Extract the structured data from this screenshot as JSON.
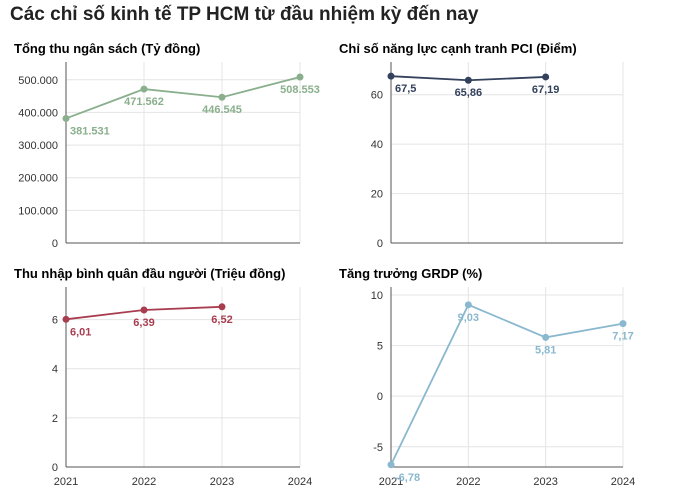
{
  "title": "Các chỉ số kinh tế TP HCM từ đầu nhiệm kỳ đến nay",
  "chart_data": [
    {
      "id": "budget",
      "type": "line",
      "title": "Tổng thu ngân sách (Tỷ đồng)",
      "color": "#8aaf8d",
      "x": [
        "2021",
        "2022",
        "2023",
        "2024"
      ],
      "values": [
        381531,
        471562,
        446545,
        508553
      ],
      "labels": [
        "381.531",
        "471.562",
        "446.545",
        "508.553"
      ],
      "yticks": [
        0,
        100000,
        200000,
        300000,
        400000,
        500000
      ],
      "ytick_labels": [
        "0",
        "100.000",
        "200.000",
        "300.000",
        "400.000",
        "500.000"
      ],
      "ylim": [
        0,
        530000
      ],
      "show_x_labels": false,
      "grid": true
    },
    {
      "id": "pci",
      "type": "line",
      "title": "Chỉ số năng lực cạnh tranh PCI (Điểm)",
      "color": "#33415c",
      "x": [
        "2021",
        "2022",
        "2023",
        "2024"
      ],
      "values": [
        67.5,
        65.86,
        67.19,
        null
      ],
      "labels": [
        "67,5",
        "65,86",
        "67,19",
        ""
      ],
      "yticks": [
        0,
        20,
        40,
        60
      ],
      "ytick_labels": [
        "0",
        "20",
        "40",
        "60"
      ],
      "ylim": [
        0,
        70
      ],
      "show_x_labels": false,
      "grid": true
    },
    {
      "id": "income",
      "type": "line",
      "title": "Thu nhập bình quân đầu người (Triệu đồng)",
      "color": "#a83d4f",
      "x": [
        "2021",
        "2022",
        "2023",
        "2024"
      ],
      "values": [
        6.01,
        6.39,
        6.52,
        null
      ],
      "labels": [
        "6,01",
        "6,39",
        "6,52",
        ""
      ],
      "yticks": [
        0,
        2,
        4,
        6
      ],
      "ytick_labels": [
        "0",
        "2",
        "4",
        "6"
      ],
      "ylim": [
        0,
        7
      ],
      "show_x_labels": true,
      "grid": true
    },
    {
      "id": "grdp",
      "type": "line",
      "title": "Tăng trưởng GRDP (%)",
      "color": "#8ab8cf",
      "x": [
        "2021",
        "2022",
        "2023",
        "2024"
      ],
      "values": [
        -6.78,
        9.03,
        5.81,
        7.17
      ],
      "labels": [
        "-6,78",
        "9,03",
        "5,81",
        "7,17"
      ],
      "yticks": [
        -5,
        0,
        5,
        10
      ],
      "ytick_labels": [
        "-5",
        "0",
        "5",
        "10"
      ],
      "ylim": [
        -7,
        10
      ],
      "show_x_labels": true,
      "grid": true
    }
  ]
}
